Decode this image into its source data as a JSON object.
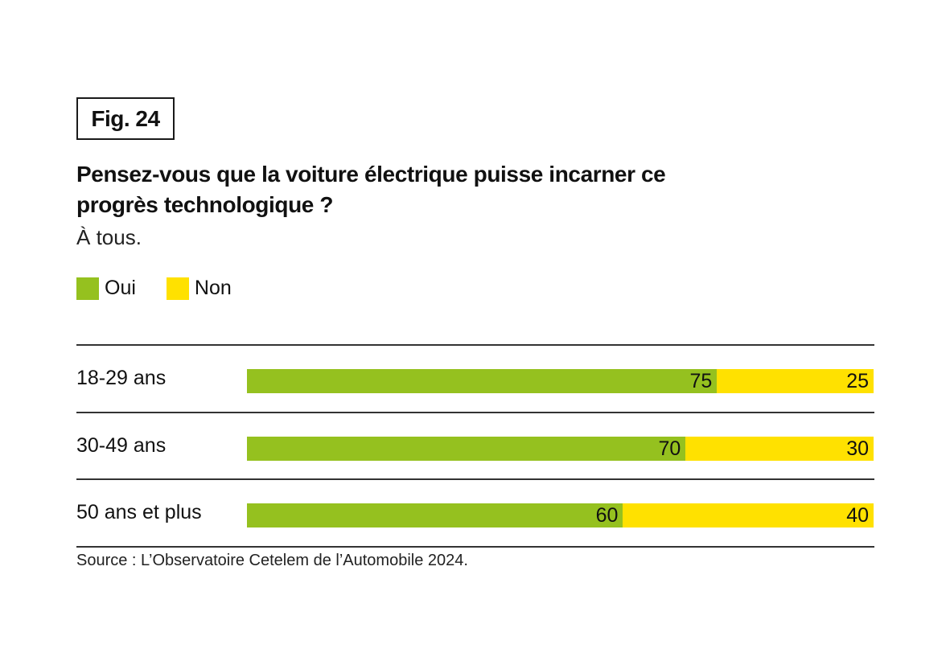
{
  "figure_label": "Fig. 24",
  "chart_data": {
    "type": "bar",
    "orientation": "horizontal",
    "stacked": true,
    "title": "Pensez-vous que la voiture électrique puisse incarner ce progrès technologique ?",
    "subtitle": "À tous.",
    "categories": [
      "18-29 ans",
      "30-49 ans",
      "50 ans et plus"
    ],
    "series": [
      {
        "name": "Oui",
        "color": "#95C11F",
        "values": [
          75,
          70,
          60
        ]
      },
      {
        "name": "Non",
        "color": "#FFE100",
        "values": [
          25,
          30,
          40
        ]
      }
    ],
    "xlim": [
      0,
      100
    ],
    "unit": "%",
    "legend_position": "top-left",
    "source": "Source : L’Observatoire Cetelem de l’Automobile 2024."
  }
}
